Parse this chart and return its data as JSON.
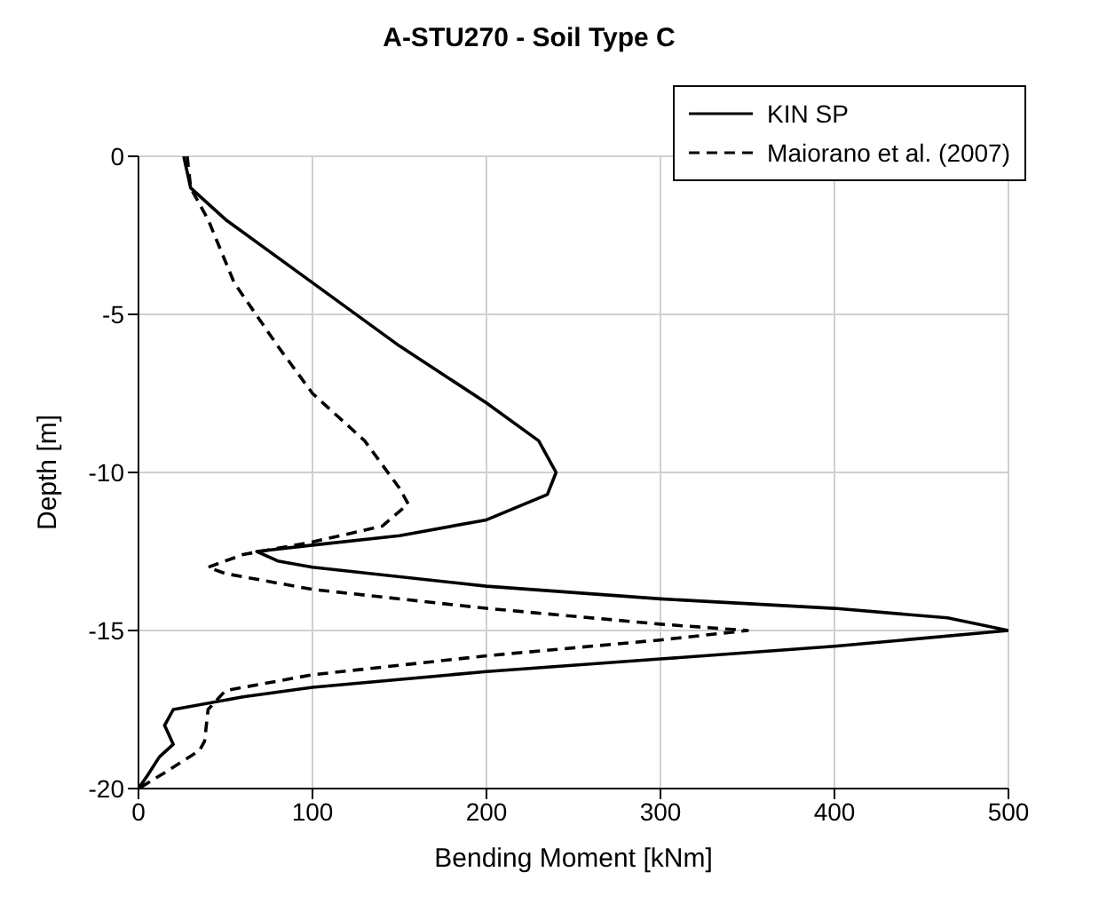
{
  "chart_data": {
    "type": "line",
    "title": "A-STU270 - Soil Type C",
    "xlabel": "Bending Moment [kNm]",
    "ylabel": "Depth [m]",
    "xlim": [
      0,
      500
    ],
    "xticks": [
      0,
      100,
      200,
      300,
      400,
      500
    ],
    "ylim": [
      -20,
      0
    ],
    "yticks": [
      -20,
      -15,
      -10,
      -5,
      0
    ],
    "grid": true,
    "legend": "top right",
    "marker": "none",
    "series": [
      {
        "name": "KIN SP",
        "color": "#000000",
        "line_style": "solid",
        "x": [
          26,
          30,
          50,
          100,
          150,
          200,
          230,
          240,
          235,
          200,
          150,
          100,
          68,
          80,
          100,
          200,
          300,
          400,
          465,
          500,
          400,
          300,
          200,
          100,
          60,
          20,
          15,
          20,
          12,
          5,
          0
        ],
        "values": [
          0,
          -1,
          -2,
          -4,
          -6,
          -7.8,
          -9,
          -10,
          -10.7,
          -11.5,
          -12,
          -12.3,
          -12.5,
          -12.8,
          -13,
          -13.6,
          -14,
          -14.3,
          -14.6,
          -15,
          -15.5,
          -15.9,
          -16.3,
          -16.8,
          -17.1,
          -17.5,
          -18,
          -18.6,
          -19,
          -19.6,
          -20
        ]
      },
      {
        "name": "Maiorano et al. (2007)",
        "color": "#000000",
        "line_style": "dashed",
        "x": [
          28,
          30,
          40,
          55,
          80,
          100,
          130,
          150,
          155,
          140,
          100,
          60,
          40,
          50,
          100,
          200,
          300,
          350,
          300,
          200,
          100,
          50,
          40,
          38,
          35,
          15,
          0
        ],
        "values": [
          0,
          -1,
          -2,
          -4,
          -6,
          -7.5,
          -9,
          -10.5,
          -11,
          -11.7,
          -12.2,
          -12.6,
          -13,
          -13.2,
          -13.7,
          -14.3,
          -14.8,
          -15,
          -15.3,
          -15.8,
          -16.4,
          -16.9,
          -17.5,
          -18.5,
          -18.8,
          -19.5,
          -20
        ]
      }
    ]
  }
}
